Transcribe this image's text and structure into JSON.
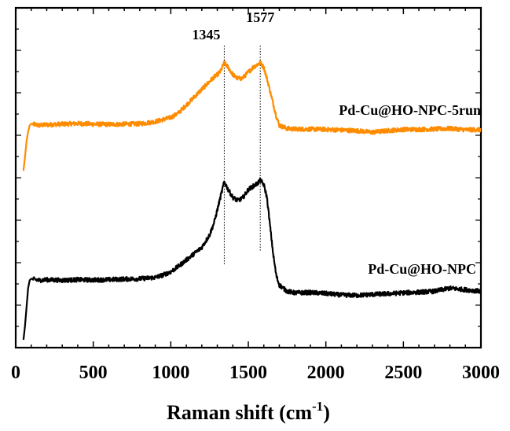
{
  "chart_data": {
    "type": "line",
    "title": "",
    "xlabel": "Raman shift (cm",
    "xlabel_sup": "-1",
    "xlabel_close": ")",
    "ylabel": "",
    "xlim": [
      0,
      3000
    ],
    "ylim": [
      0,
      1
    ],
    "xticks": [
      "0",
      "500",
      "1000",
      "1500",
      "2000",
      "2500",
      "3000"
    ],
    "y_ticks_labeled": false,
    "grid": false,
    "peaks": [
      {
        "label": "1345",
        "x": 1345
      },
      {
        "label": "1577",
        "x": 1577
      }
    ],
    "series": [
      {
        "name": "Pd-Cu@HO-NPC-5run",
        "color": "#ff8c00",
        "x": [
          50,
          60,
          70,
          80,
          90,
          100,
          150,
          200,
          300,
          400,
          500,
          600,
          700,
          800,
          900,
          1000,
          1050,
          1100,
          1150,
          1200,
          1250,
          1280,
          1300,
          1320,
          1345,
          1370,
          1400,
          1430,
          1460,
          1480,
          1500,
          1530,
          1560,
          1577,
          1600,
          1620,
          1650,
          1680,
          1700,
          1750,
          1800,
          1900,
          2000,
          2100,
          2200,
          2300,
          2400,
          2500,
          2600,
          2700,
          2800,
          2900,
          3000
        ],
        "values": [
          0.555,
          0.6,
          0.65,
          0.68,
          0.7,
          0.705,
          0.7,
          0.702,
          0.704,
          0.706,
          0.704,
          0.703,
          0.704,
          0.705,
          0.712,
          0.725,
          0.74,
          0.765,
          0.79,
          0.815,
          0.84,
          0.855,
          0.862,
          0.872,
          0.9,
          0.885,
          0.862,
          0.85,
          0.85,
          0.86,
          0.87,
          0.885,
          0.895,
          0.9,
          0.885,
          0.85,
          0.79,
          0.73,
          0.7,
          0.69,
          0.688,
          0.688,
          0.687,
          0.685,
          0.683,
          0.678,
          0.683,
          0.687,
          0.687,
          0.688,
          0.69,
          0.686,
          0.686
        ]
      },
      {
        "name": "Pd-Cu@HO-NPC",
        "color": "#000000",
        "x": [
          50,
          60,
          70,
          80,
          90,
          100,
          150,
          200,
          300,
          400,
          500,
          600,
          700,
          800,
          900,
          950,
          1000,
          1050,
          1100,
          1150,
          1200,
          1250,
          1280,
          1300,
          1320,
          1345,
          1370,
          1400,
          1430,
          1460,
          1480,
          1500,
          1530,
          1560,
          1577,
          1600,
          1620,
          1640,
          1660,
          1680,
          1700,
          1750,
          1800,
          1900,
          2000,
          2100,
          2200,
          2300,
          2400,
          2500,
          2600,
          2700,
          2800,
          2900,
          3000
        ],
        "values": [
          0.015,
          0.06,
          0.12,
          0.18,
          0.205,
          0.21,
          0.205,
          0.207,
          0.205,
          0.207,
          0.206,
          0.207,
          0.209,
          0.21,
          0.214,
          0.222,
          0.232,
          0.25,
          0.27,
          0.29,
          0.31,
          0.35,
          0.39,
          0.43,
          0.47,
          0.52,
          0.495,
          0.47,
          0.46,
          0.466,
          0.48,
          0.495,
          0.505,
          0.515,
          0.525,
          0.51,
          0.47,
          0.38,
          0.29,
          0.22,
          0.19,
          0.17,
          0.165,
          0.166,
          0.163,
          0.158,
          0.157,
          0.16,
          0.162,
          0.165,
          0.167,
          0.17,
          0.18,
          0.175,
          0.17
        ]
      }
    ]
  }
}
